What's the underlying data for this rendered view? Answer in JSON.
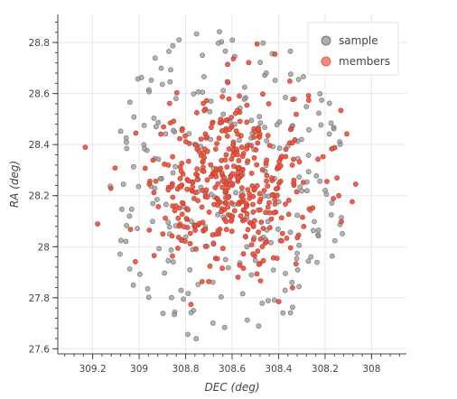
{
  "chart_data": {
    "type": "scatter",
    "xlabel": "DEC (deg)",
    "ylabel": "RA (deg)",
    "xlim": [
      309.35,
      307.85
    ],
    "ylim": [
      27.58,
      28.91
    ],
    "x_ticks": [
      309.2,
      309,
      308.8,
      308.6,
      308.4,
      308.2,
      308
    ],
    "x_tick_labels": [
      "309.2",
      "309",
      "308.8",
      "308.6",
      "308.4",
      "308.2",
      "308"
    ],
    "y_ticks": [
      27.6,
      27.8,
      28,
      28.2,
      28.4,
      28.6,
      28.8
    ],
    "y_tick_labels": [
      "27.6",
      "27.8",
      "28",
      "28.2",
      "28.4",
      "28.6",
      "28.8"
    ],
    "grid": true,
    "legend_position": "top-right",
    "series": [
      {
        "name": "sample",
        "color": "#999999",
        "count": 260,
        "center": [
          308.62,
          28.24
        ],
        "spread": [
          0.34,
          0.32
        ]
      },
      {
        "name": "members",
        "color": "#e5533c",
        "count": 430,
        "center": [
          308.62,
          28.25
        ],
        "spread": [
          0.19,
          0.18
        ]
      }
    ]
  }
}
